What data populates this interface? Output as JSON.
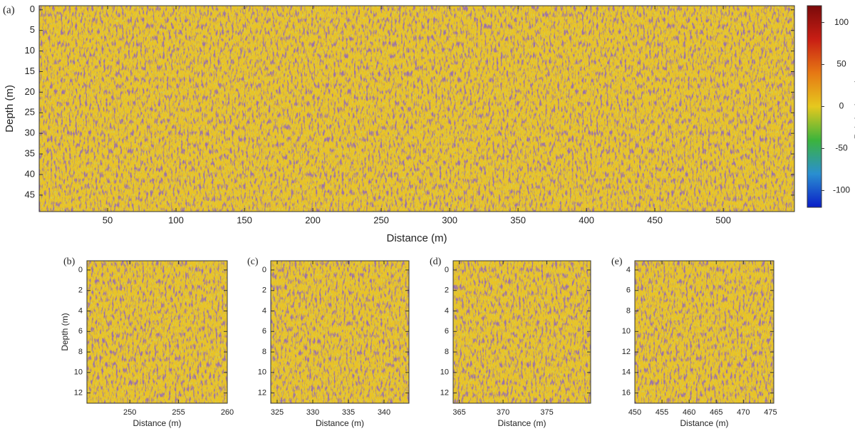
{
  "chart_data": [
    {
      "type": "radargram",
      "label": "(a)",
      "xlabel": "Distance (m)",
      "ylabel": "Depth (m)",
      "xlim": [
        0,
        552
      ],
      "xticks": [
        50,
        100,
        150,
        200,
        250,
        300,
        350,
        400,
        450,
        500
      ],
      "ylim": [
        -1,
        49
      ],
      "yticks": [
        0,
        5,
        10,
        15,
        20,
        25,
        30,
        35,
        40,
        45
      ]
    },
    {
      "type": "radargram",
      "label": "(b)",
      "xlabel": "Distance (m)",
      "ylabel": "Depth (m)",
      "xlim": [
        245.6,
        260
      ],
      "xticks": [
        250,
        255,
        260
      ],
      "ylim": [
        -0.9,
        13
      ],
      "yticks": [
        0,
        2,
        4,
        6,
        8,
        10,
        12
      ]
    },
    {
      "type": "radargram",
      "label": "(c)",
      "xlabel": "Distance (m)",
      "xlim": [
        324.1,
        343.5
      ],
      "xticks": [
        325,
        330,
        335,
        340
      ],
      "ylim": [
        -0.9,
        13
      ],
      "yticks": [
        0,
        2,
        4,
        6,
        8,
        10,
        12
      ]
    },
    {
      "type": "radargram",
      "label": "(d)",
      "xlabel": "Distance (m)",
      "xlim": [
        364.3,
        380
      ],
      "xticks": [
        365,
        370,
        375
      ],
      "ylim": [
        -0.9,
        13
      ],
      "yticks": [
        0,
        2,
        4,
        6,
        8,
        10,
        12
      ]
    },
    {
      "type": "radargram",
      "label": "(e)",
      "xlabel": "Distance (m)",
      "xlim": [
        450,
        475.6
      ],
      "xticks": [
        450,
        455,
        460,
        465,
        470,
        475
      ],
      "ylim": [
        3.1,
        17
      ],
      "yticks": [
        4,
        6,
        8,
        10,
        12,
        14,
        16
      ]
    },
    {
      "type": "colorbar",
      "label": "Relative Intensity",
      "colors": [
        "#0a1ec8",
        "#2a8fd0",
        "#3cb43c",
        "#e6c81e",
        "#e67814",
        "#c81e14",
        "#7a0a0a"
      ],
      "ylim": [
        -120,
        120
      ],
      "yticks": [
        -100,
        -50,
        0,
        50,
        100
      ]
    }
  ]
}
